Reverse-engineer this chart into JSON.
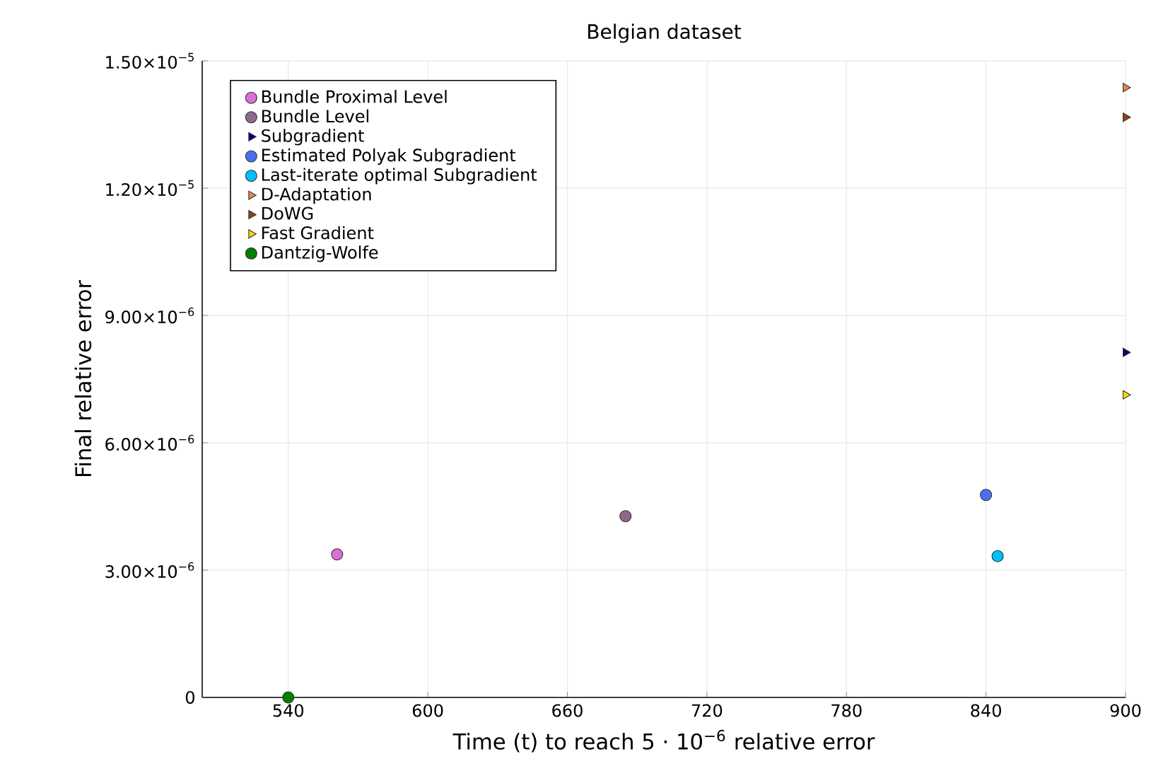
{
  "chart_data": {
    "type": "scatter",
    "title": "Belgian dataset",
    "xlabel": "Time (t) to reach 5 · 10$^{−6}$ relative error",
    "ylabel": "Final relative error",
    "xlim": [
      503,
      900
    ],
    "xticks": [
      540,
      600,
      660,
      720,
      780,
      840,
      900
    ],
    "ylim": [
      0,
      1.5e-05
    ],
    "yticks": [
      0,
      {
        "value": 3e-06,
        "label": "3.00×10$^{−6}$"
      },
      {
        "value": 6e-06,
        "label": "6.00×10$^{−6}$"
      },
      {
        "value": 9e-06,
        "label": "9.00×10$^{−6}$"
      },
      {
        "value": 1.2e-05,
        "label": "1.20×10$^{−5}$"
      },
      {
        "value": 1.5e-05,
        "label": "1.50×10$^{−5}$"
      }
    ],
    "grid": true,
    "legend": "top left",
    "series": [
      {
        "name": "Bundle Proximal Level",
        "color": "#dc6fd6",
        "marker": "circle",
        "x": [
          561
        ],
        "values": [
          3.37e-06
        ]
      },
      {
        "name": "Bundle Level",
        "color": "#8e6a8a",
        "marker": "circle",
        "x": [
          685
        ],
        "values": [
          4.27e-06
        ]
      },
      {
        "name": "Subgradient",
        "color": "#000080",
        "marker": "triangle",
        "x": [
          900
        ],
        "values": [
          8.13e-06
        ]
      },
      {
        "name": "Estimated Polyak Subgradient",
        "color": "#4a6ff5",
        "marker": "circle",
        "x": [
          840
        ],
        "values": [
          4.77e-06
        ]
      },
      {
        "name": "Last-iterate optimal Subgradient",
        "color": "#00bfff",
        "marker": "circle",
        "x": [
          845
        ],
        "values": [
          3.33e-06
        ]
      },
      {
        "name": "D-Adaptation",
        "color": "#e8894a",
        "marker": "triangle",
        "x": [
          900
        ],
        "values": [
          1.437e-05
        ]
      },
      {
        "name": "DoWG",
        "color": "#8b4513",
        "marker": "triangle",
        "x": [
          900
        ],
        "values": [
          1.367e-05
        ]
      },
      {
        "name": "Fast Gradient",
        "color": "#ffd700",
        "marker": "triangle",
        "x": [
          900
        ],
        "values": [
          7.13e-06
        ]
      },
      {
        "name": "Dantzig-Wolfe",
        "color": "#008000",
        "marker": "circle",
        "x": [
          540
        ],
        "values": [
          0
        ]
      }
    ]
  }
}
